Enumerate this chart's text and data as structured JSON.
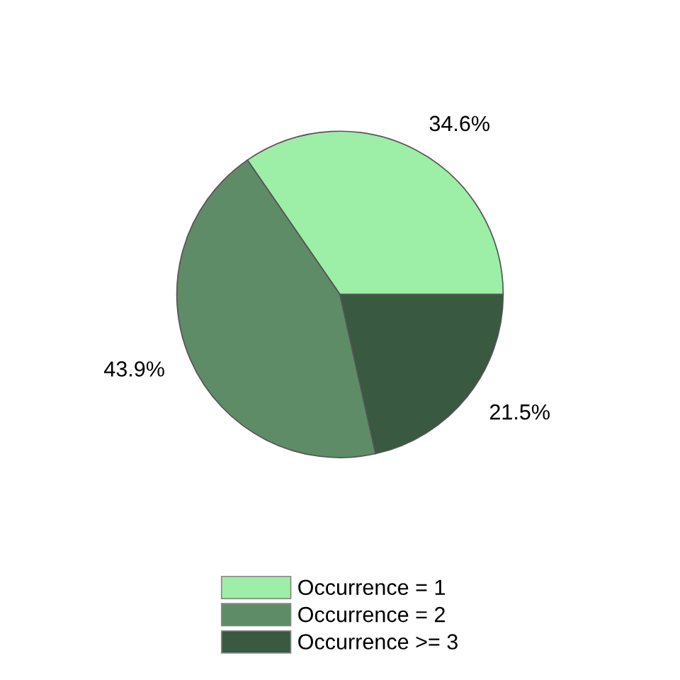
{
  "chart_data": {
    "type": "pie",
    "categories": [
      "Occurrence = 1",
      "Occurrence = 2",
      "Occurrence >= 3"
    ],
    "values": [
      34.6,
      43.9,
      21.5
    ],
    "colors": [
      "#9deea6",
      "#5e8c67",
      "#395940"
    ],
    "value_labels": [
      "34.6%",
      "43.9%",
      "21.5%"
    ],
    "legend": "bottom"
  }
}
